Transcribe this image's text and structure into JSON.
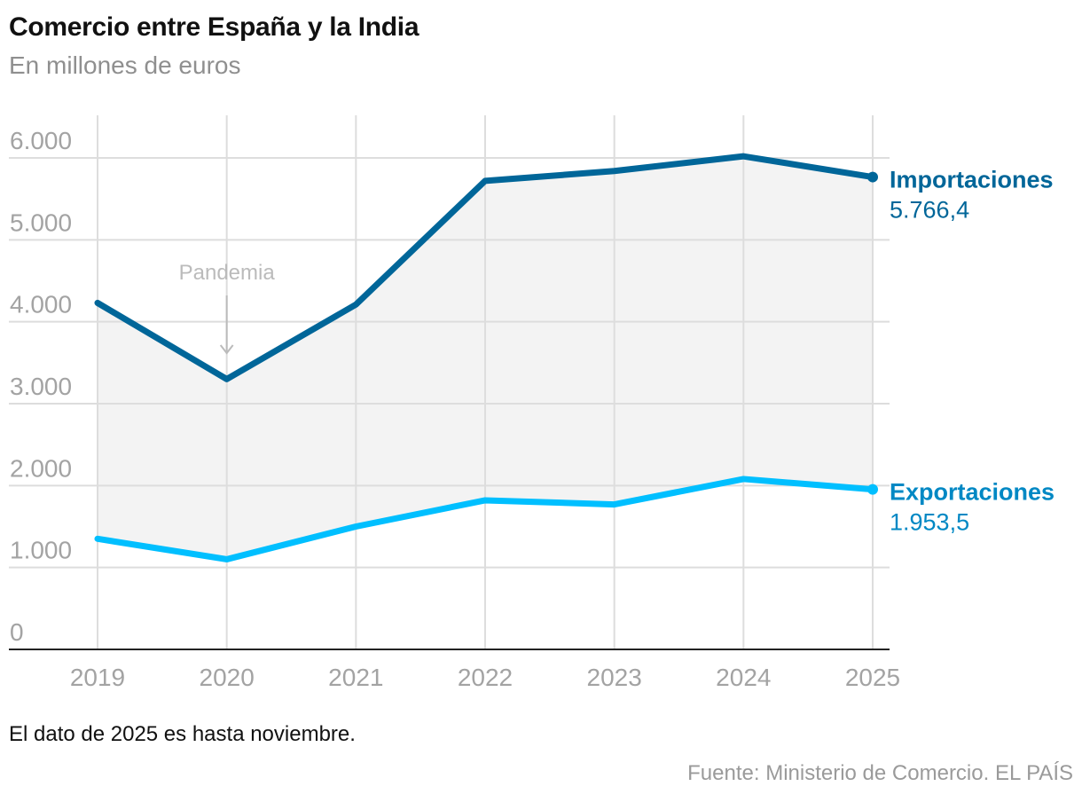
{
  "header": {
    "title": "Comercio entre España y la India",
    "subtitle": "En millones de euros"
  },
  "footer": {
    "note": "El dato de 2025 es hasta noviembre.",
    "source": "Fuente: Ministerio de Comercio. EL PAÍS"
  },
  "colors": {
    "imports": "#006699",
    "exports": "#00bfff",
    "area": "#f3f3f3",
    "grid": "#dddddd",
    "axis_text": "#a3a3a3",
    "annotation": "#bbbbbb"
  },
  "chart_data": {
    "type": "line",
    "title": "Comercio entre España y la India",
    "subtitle": "En millones de euros",
    "x": [
      "2019",
      "2020",
      "2021",
      "2022",
      "2023",
      "2024",
      "2025"
    ],
    "ylim": [
      0,
      6000
    ],
    "yticks": [
      0,
      1000,
      2000,
      3000,
      4000,
      5000,
      6000
    ],
    "ytick_labels": [
      "0",
      "1.000",
      "2.000",
      "3.000",
      "4.000",
      "5.000",
      "6.000"
    ],
    "grid": true,
    "series": [
      {
        "name": "Importaciones",
        "values": [
          4230,
          3300,
          4210,
          5720,
          5840,
          6020,
          5766.4
        ],
        "last_label": "5.766,4"
      },
      {
        "name": "Exportaciones",
        "values": [
          1350,
          1100,
          1500,
          1820,
          1770,
          2080,
          1953.5
        ],
        "last_label": "1.953,5"
      }
    ],
    "fill_between_series": true,
    "annotations": [
      {
        "text": "Pandemia",
        "x": "2020",
        "arrow": "down"
      }
    ]
  }
}
